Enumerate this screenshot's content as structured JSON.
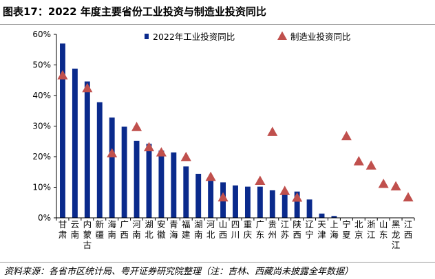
{
  "title": "图表17：2022 年度主要省份工业投资与制造业投资同比",
  "source": "资料来源：各省市区统计局、粤开证券研究院整理（注：吉林、西藏尚未披露全年数据）",
  "colors": {
    "bar": "#0a2a8c",
    "marker": "#c0504d",
    "axis": "#000000"
  },
  "chart_data": {
    "type": "bar",
    "title": "图表17：2022 年度主要省份工业投资与制造业投资同比",
    "xlabel": "",
    "ylabel": "",
    "ylim": [
      0,
      60
    ],
    "yticks": [
      "0%",
      "10%",
      "20%",
      "30%",
      "40%",
      "50%",
      "60%"
    ],
    "categories": [
      "甘肃",
      "云南",
      "内蒙古",
      "新疆",
      "海南",
      "广西",
      "河南",
      "湖北",
      "安徽",
      "青海",
      "福建",
      "湖南",
      "河北",
      "山西",
      "四川",
      "重庆",
      "广东",
      "贵州",
      "江苏",
      "陕西",
      "辽宁",
      "天津",
      "上海",
      "宁夏",
      "北京",
      "浙江",
      "山东",
      "黑龙江",
      "江西"
    ],
    "series": [
      {
        "name": "2022年工业投资同比",
        "kind": "bar",
        "values": [
          57.0,
          48.8,
          44.6,
          37.8,
          32.8,
          29.8,
          25.2,
          24.2,
          22.0,
          21.4,
          16.8,
          14.4,
          12.2,
          11.6,
          10.6,
          10.2,
          10.2,
          9.0,
          8.8,
          8.6,
          6.0,
          1.4,
          0.6,
          null,
          null,
          null,
          null,
          null,
          null
        ]
      },
      {
        "name": "制造业投资同比",
        "kind": "marker",
        "values": [
          46.5,
          null,
          42.3,
          null,
          21.0,
          null,
          29.6,
          23.0,
          21.3,
          null,
          19.8,
          null,
          13.3,
          6.6,
          null,
          null,
          12.0,
          28.0,
          8.7,
          6.5,
          null,
          null,
          null,
          26.6,
          18.4,
          17.0,
          11.0,
          10.2,
          6.6
        ]
      }
    ],
    "legend_position": "top"
  }
}
